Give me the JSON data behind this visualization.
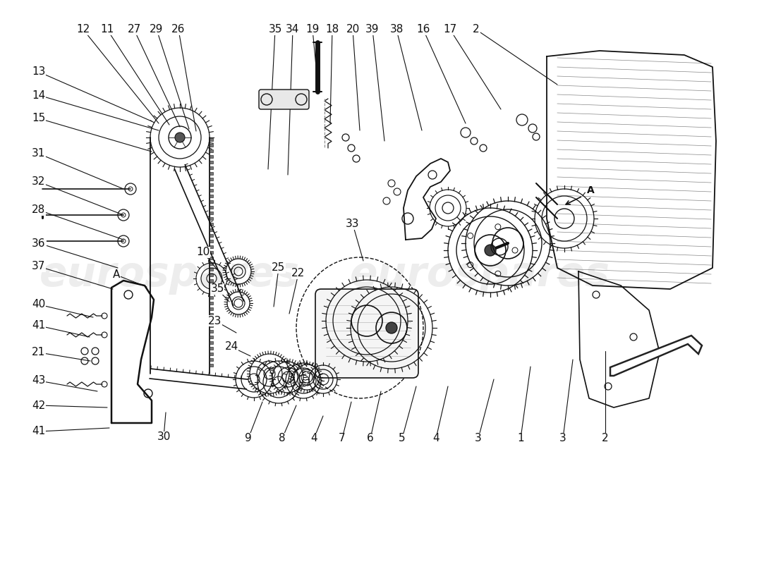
{
  "bg_color": "#ffffff",
  "line_color": "#111111",
  "watermark_text": "eurospares",
  "font_size": 11,
  "top_labels": [
    [
      "12",
      118,
      42,
      225,
      175
    ],
    [
      "11",
      152,
      42,
      240,
      177
    ],
    [
      "27",
      190,
      42,
      255,
      180
    ],
    [
      "29",
      222,
      42,
      268,
      183
    ],
    [
      "26",
      253,
      42,
      278,
      186
    ],
    [
      "35",
      390,
      42,
      380,
      240
    ],
    [
      "34",
      415,
      42,
      408,
      248
    ],
    [
      "19",
      443,
      42,
      450,
      115
    ],
    [
      "18",
      471,
      42,
      468,
      175
    ],
    [
      "20",
      500,
      42,
      510,
      185
    ],
    [
      "39",
      528,
      42,
      545,
      200
    ],
    [
      "38",
      562,
      42,
      598,
      185
    ],
    [
      "16",
      600,
      42,
      660,
      175
    ],
    [
      "17",
      638,
      42,
      710,
      155
    ],
    [
      "2",
      675,
      42,
      790,
      120
    ]
  ],
  "left_labels": [
    [
      "13",
      55,
      102,
      215,
      172
    ],
    [
      "14",
      55,
      135,
      225,
      185
    ],
    [
      "15",
      55,
      168,
      215,
      215
    ],
    [
      "31",
      55,
      218,
      175,
      268
    ],
    [
      "32",
      55,
      258,
      175,
      305
    ],
    [
      "28",
      55,
      298,
      175,
      340
    ],
    [
      "36",
      55,
      345,
      167,
      380
    ],
    [
      "37",
      55,
      378,
      160,
      410
    ],
    [
      "40",
      55,
      432,
      132,
      450
    ],
    [
      "41",
      55,
      462,
      127,
      478
    ],
    [
      "21",
      55,
      500,
      128,
      512
    ],
    [
      "43",
      55,
      540,
      138,
      555
    ],
    [
      "42",
      55,
      575,
      152,
      578
    ],
    [
      "41",
      55,
      612,
      155,
      607
    ]
  ],
  "inner_labels": [
    [
      "A",
      165,
      390,
      208,
      407
    ],
    [
      "10",
      288,
      358,
      310,
      385
    ],
    [
      "35",
      308,
      410,
      325,
      428
    ],
    [
      "23",
      305,
      455,
      335,
      472
    ],
    [
      "24",
      328,
      492,
      355,
      505
    ],
    [
      "30",
      232,
      620,
      235,
      585
    ],
    [
      "25",
      395,
      380,
      388,
      435
    ],
    [
      "22",
      423,
      388,
      410,
      445
    ],
    [
      "33",
      500,
      318,
      515,
      370
    ],
    [
      "9",
      352,
      622,
      372,
      570
    ],
    [
      "8",
      400,
      622,
      420,
      575
    ],
    [
      "4",
      445,
      622,
      458,
      590
    ],
    [
      "7",
      485,
      622,
      498,
      570
    ],
    [
      "6",
      525,
      622,
      540,
      555
    ],
    [
      "5",
      570,
      622,
      590,
      548
    ],
    [
      "4",
      618,
      622,
      635,
      548
    ],
    [
      "3",
      678,
      622,
      700,
      538
    ],
    [
      "1",
      738,
      622,
      752,
      520
    ],
    [
      "3",
      798,
      622,
      812,
      510
    ],
    [
      "2",
      858,
      622,
      858,
      498
    ]
  ]
}
